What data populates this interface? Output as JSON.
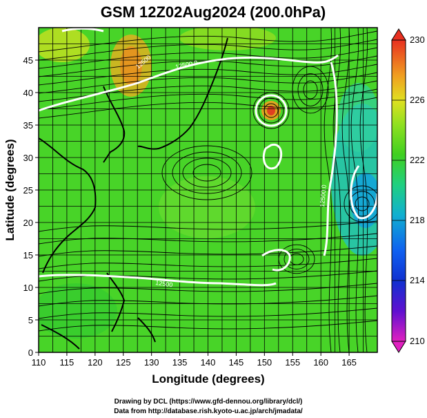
{
  "title": "GSM 12Z02Aug2024 (200.0hPa)",
  "x_axis": {
    "label": "Longitude (degrees)",
    "ticks": [
      "110",
      "115",
      "120",
      "125",
      "130",
      "135",
      "140",
      "145",
      "150",
      "155",
      "160",
      "165"
    ],
    "range": [
      110,
      170
    ]
  },
  "y_axis": {
    "label": "Latitude  (degrees)",
    "ticks": [
      "0",
      "5",
      "10",
      "15",
      "20",
      "25",
      "30",
      "35",
      "40",
      "45"
    ],
    "range": [
      0,
      50
    ]
  },
  "colorbar": {
    "labels": [
      "230",
      "226",
      "222",
      "218",
      "214",
      "210"
    ],
    "range": [
      210,
      230
    ],
    "colors": {
      "max": "#e03020",
      "orange": "#f0a020",
      "yellow": "#e0e020",
      "green": "#40d020",
      "cyan": "#10c0c0",
      "blue": "#1040e0",
      "min": "#d010c0"
    }
  },
  "contour_labels": [
    "12500.0",
    "12500",
    "12500.0",
    "12500"
  ],
  "credits": {
    "line1": "Drawing by DCL (https://www.gfd-dennou.org/library/dcl/)",
    "line2": "Data from http://database.rish.kyoto-u.ac.jp/arch/jmadata/"
  }
}
